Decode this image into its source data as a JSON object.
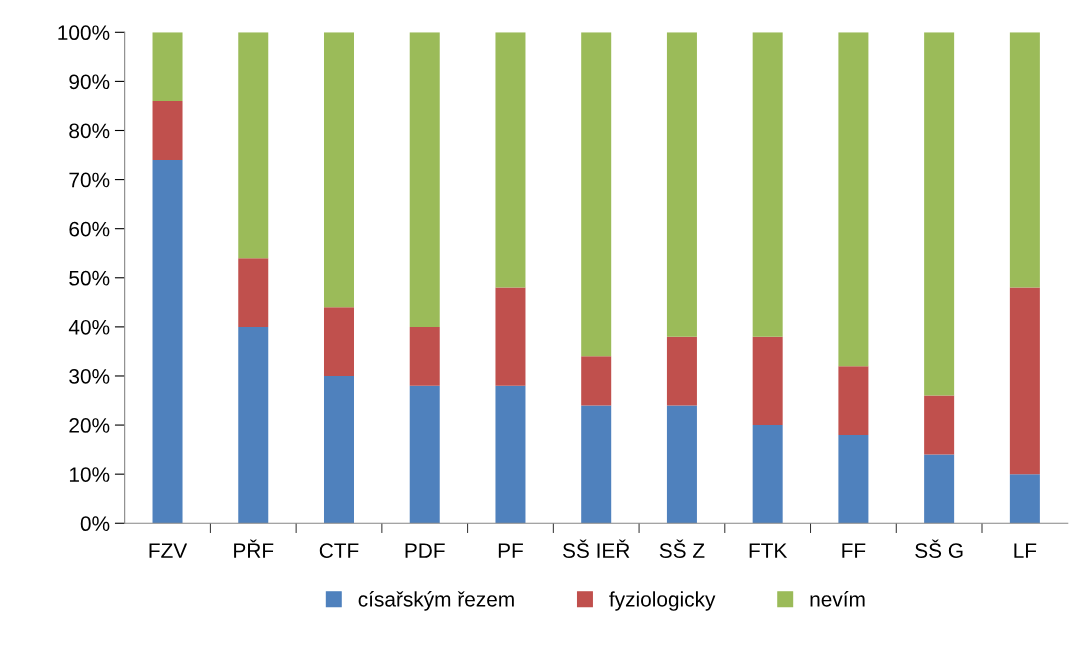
{
  "chart_data": {
    "type": "bar",
    "stacked": true,
    "categories": [
      "FZV",
      "PŘF",
      "CTF",
      "PDF",
      "PF",
      "SŠ IEŘ",
      "SŠ Z",
      "FTK",
      "FF",
      "SŠ G",
      "LF"
    ],
    "series": [
      {
        "name": "císařským řezem",
        "color": "#4f81bd",
        "values": [
          74,
          40,
          30,
          28,
          28,
          24,
          24,
          20,
          18,
          14,
          10
        ]
      },
      {
        "name": "fyziologicky",
        "color": "#c0504d",
        "values": [
          12,
          14,
          14,
          12,
          20,
          10,
          14,
          18,
          14,
          12,
          38
        ]
      },
      {
        "name": "nevím",
        "color": "#9bbb59",
        "values": [
          14,
          46,
          56,
          60,
          52,
          66,
          62,
          62,
          68,
          74,
          52
        ]
      }
    ],
    "ylim": [
      0,
      100
    ],
    "yticks": [
      {
        "value": 0,
        "label": "0%"
      },
      {
        "value": 10,
        "label": "10%"
      },
      {
        "value": 20,
        "label": "20%"
      },
      {
        "value": 30,
        "label": "30%"
      },
      {
        "value": 40,
        "label": "40%"
      },
      {
        "value": 50,
        "label": "50%"
      },
      {
        "value": 60,
        "label": "60%"
      },
      {
        "value": 70,
        "label": "70%"
      },
      {
        "value": 80,
        "label": "80%"
      },
      {
        "value": 90,
        "label": "90%"
      },
      {
        "value": 100,
        "label": "100%"
      }
    ],
    "grid": false,
    "legend": "bottom"
  }
}
